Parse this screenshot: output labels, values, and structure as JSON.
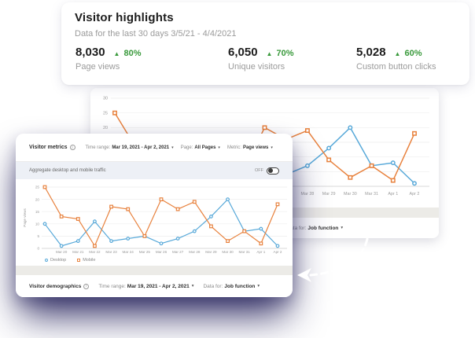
{
  "ui": {
    "caret_icon": "▾",
    "info_icon_letter": "i",
    "up_triangle_icon": "▲",
    "positive_color": "#3a9a3c",
    "desktop_color": "#58a9d9",
    "mobile_color": "#e8823e"
  },
  "highlights": {
    "title": "Visitor highlights",
    "subtitle": "Data for the last 30 days 3/5/21 - 4/4/2021",
    "stats": [
      {
        "value": "8,030",
        "delta": "80%",
        "label": "Page views"
      },
      {
        "value": "6,050",
        "delta": "70%",
        "label": "Unique visitors"
      },
      {
        "value": "5,028",
        "delta": "60%",
        "label": "Custom button clicks"
      }
    ]
  },
  "metrics_panel": {
    "title": "Visitor metrics",
    "filters": [
      {
        "label": "Time range:",
        "value": "Mar 19, 2021 - Apr 2, 2021"
      },
      {
        "label": "Page:",
        "value": "All Pages"
      },
      {
        "label": "Metric:",
        "value": "Page views"
      }
    ],
    "aggregate_label": "Aggregate desktop and mobile traffic",
    "toggle_label": "Off",
    "toggle_state": "off"
  },
  "demographics_panel": {
    "title": "Visitor demographics",
    "filters": [
      {
        "label": "Time range:",
        "value": "Mar 19, 2021 - Apr 2, 2021"
      },
      {
        "label": "Data for:",
        "value": "Job function"
      }
    ]
  },
  "chart_data": {
    "type": "line",
    "title": "Visitor metrics - Page views",
    "ylabel": "Page views",
    "xlabel": "",
    "grid": true,
    "legend_position": "bottom-left",
    "x": [
      "Mar 19",
      "Mar 20",
      "Mar 21",
      "Mar 22",
      "Mar 23",
      "Mar 24",
      "Mar 25",
      "Mar 26",
      "Mar 27",
      "Mar 28",
      "Mar 29",
      "Mar 30",
      "Mar 31",
      "Apr 1",
      "Apr 2"
    ],
    "x_label_start_index": 1,
    "y_tick_step": 5,
    "series": [
      {
        "name": "Desktop",
        "marker": "circle",
        "color": "#58a9d9",
        "values": [
          10,
          1,
          3,
          11,
          3,
          4,
          5,
          2,
          4,
          7,
          13,
          20,
          7,
          8,
          1
        ]
      },
      {
        "name": "Mobile",
        "marker": "square",
        "color": "#e8823e",
        "values": [
          25,
          13,
          12,
          1,
          17,
          16,
          5,
          20,
          16,
          19,
          9,
          3,
          7,
          2,
          18
        ]
      }
    ],
    "views": [
      {
        "name": "front",
        "ylim": [
          0,
          25
        ]
      },
      {
        "name": "back",
        "ylim": [
          0,
          30
        ]
      }
    ]
  }
}
